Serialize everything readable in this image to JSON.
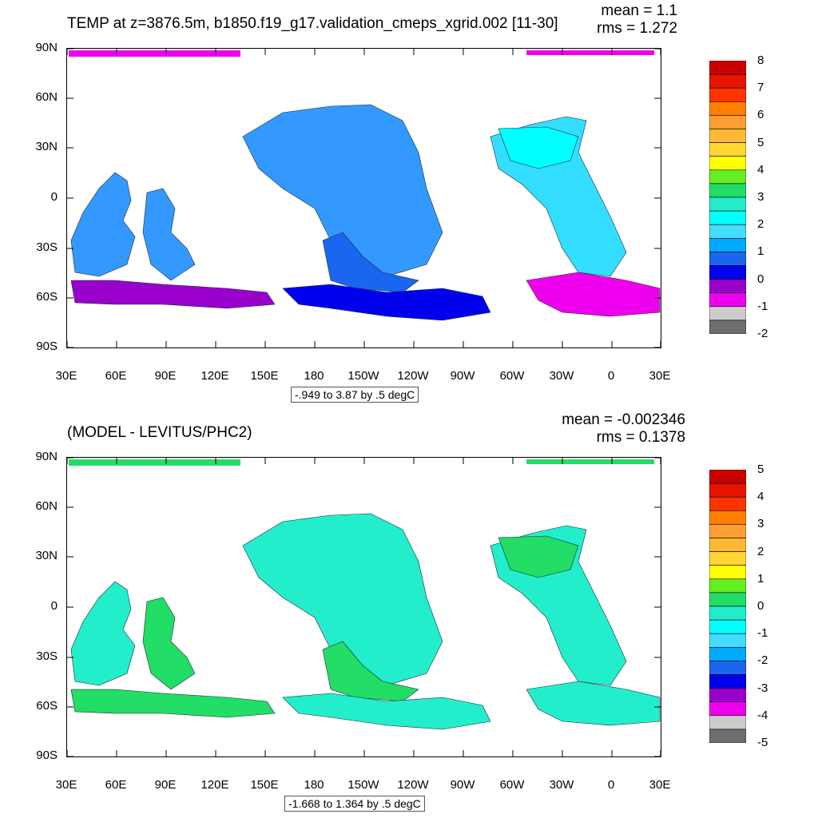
{
  "chart_data": [
    {
      "type": "heatmap",
      "title": "TEMP at z=3876.5m, b1850.f19_g17.validation_cmeps_xgrid.002 [11-30]",
      "mean_text": "mean = 1.1",
      "rms_text": "rms = 1.272",
      "range_text": "-.949 to 3.87 by .5 degC",
      "lat_ticks": [
        "90N",
        "60N",
        "30N",
        "0",
        "30S",
        "60S",
        "90S"
      ],
      "lon_ticks": [
        "30E",
        "60E",
        "90E",
        "120E",
        "150E",
        "180",
        "150W",
        "120W",
        "90W",
        "60W",
        "30W",
        "0",
        "30E"
      ],
      "colorbar_labels": [
        "8",
        "7",
        "6",
        "5",
        "4",
        "3",
        "2",
        "1",
        "0",
        "-1",
        "-2"
      ],
      "colorbar_colors": [
        "#cc0000",
        "#e61400",
        "#ff3300",
        "#ff7f00",
        "#ff9f33",
        "#ffb833",
        "#ffd633",
        "#ffff00",
        "#66ee22",
        "#22dd66",
        "#22eecc",
        "#00ffff",
        "#44ddff",
        "#00aaff",
        "#1a66ee",
        "#0000ee",
        "#9900cc",
        "#ee00ee",
        "#cccccc",
        "#6e6e6e"
      ],
      "region_colors": [
        "#3399ff",
        "#3399ff",
        "#3399ff",
        "#1a66ee",
        "#33ddff",
        "#00ffff",
        "#0000ee",
        "#9900cc",
        "#ee00ee"
      ]
    },
    {
      "type": "heatmap",
      "title": "(MODEL - LEVITUS/PHC2)",
      "mean_text": "mean = -0.002346",
      "rms_text": "rms = 0.1378",
      "range_text": "-1.668 to 1.364 by .5 degC",
      "lat_ticks": [
        "90N",
        "60N",
        "30N",
        "0",
        "30S",
        "60S",
        "90S"
      ],
      "lon_ticks": [
        "30E",
        "60E",
        "90E",
        "120E",
        "150E",
        "180",
        "150W",
        "120W",
        "90W",
        "60W",
        "30W",
        "0",
        "30E"
      ],
      "colorbar_labels": [
        "5",
        "4",
        "3",
        "2",
        "1",
        "0",
        "-1",
        "-2",
        "-3",
        "-4",
        "-5"
      ],
      "colorbar_colors": [
        "#cc0000",
        "#e61400",
        "#ff3300",
        "#ff7f00",
        "#ff9f33",
        "#ffb833",
        "#ffd633",
        "#ffff00",
        "#66ee22",
        "#22dd66",
        "#22eecc",
        "#00ffff",
        "#44ddff",
        "#00aaff",
        "#1a66ee",
        "#0000ee",
        "#9900cc",
        "#ee00ee",
        "#cccccc",
        "#6e6e6e"
      ],
      "region_colors": [
        "#22eecc",
        "#22dd66",
        "#22eecc",
        "#22dd66",
        "#22eecc",
        "#22dd66",
        "#22eecc",
        "#22dd66",
        "#22eecc"
      ]
    }
  ]
}
